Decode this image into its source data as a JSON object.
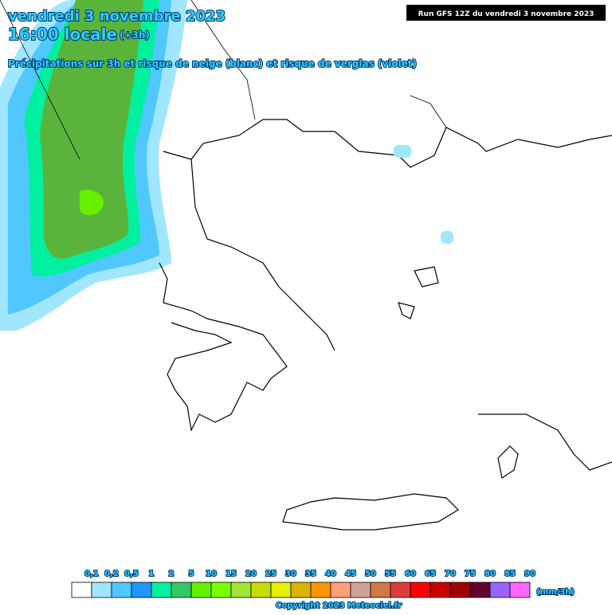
{
  "header": {
    "date": "vendredi 3 novembre 2023",
    "time": "16:00 locale",
    "offset": "(+3h)",
    "subtitle": "Précipitations sur 3h et risque de neige (blanc) et risque de verglas (violet)",
    "run": "Run GFS 12Z du vendredi 3 novembre 2023"
  },
  "legend": {
    "unit": "(mm/3h)",
    "items": [
      {
        "label": "0,1",
        "color": "#ffffff"
      },
      {
        "label": "0,2",
        "color": "#a0e6ff"
      },
      {
        "label": "0,5",
        "color": "#50c8ff"
      },
      {
        "label": "1",
        "color": "#1e96ff"
      },
      {
        "label": "2",
        "color": "#00f0a0"
      },
      {
        "label": "5",
        "color": "#32c864"
      },
      {
        "label": "10",
        "color": "#64f000"
      },
      {
        "label": "15",
        "color": "#78ff00"
      },
      {
        "label": "20",
        "color": "#a0e632"
      },
      {
        "label": "25",
        "color": "#c8dc00"
      },
      {
        "label": "30",
        "color": "#e6f000"
      },
      {
        "label": "35",
        "color": "#dcb400"
      },
      {
        "label": "40",
        "color": "#ff9600"
      },
      {
        "label": "45",
        "color": "#ffa078"
      },
      {
        "label": "50",
        "color": "#d2a09b"
      },
      {
        "label": "55",
        "color": "#d27846"
      },
      {
        "label": "60",
        "color": "#dc3c3c"
      },
      {
        "label": "65",
        "color": "#ff0000"
      },
      {
        "label": "70",
        "color": "#c80000"
      },
      {
        "label": "75",
        "color": "#a00000"
      },
      {
        "label": "80",
        "color": "#640032"
      },
      {
        "label": "85",
        "color": "#9664ff"
      },
      {
        "label": "90",
        "color": "#ff64ff"
      }
    ]
  },
  "footer": {
    "copyright": "Copyright 2023 Meteociel.fr"
  }
}
